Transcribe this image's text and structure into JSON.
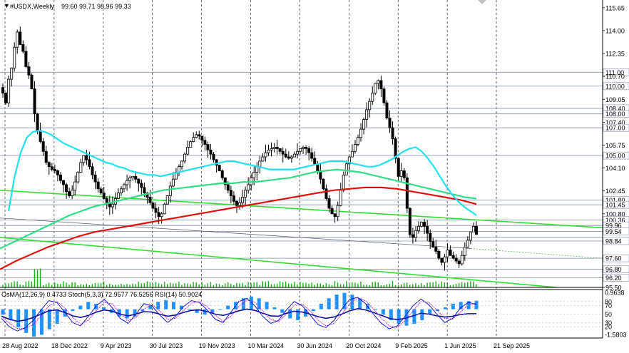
{
  "header": {
    "symbol": "#USDX,Weekly",
    "ohlc": "99.60 99.71 98.96 99.33",
    "indicator_caption": "OsMA(12,26,9) 0.4733  Stoch(5,3,3) 72.9577 76.5256  RSI(14) 50.9024"
  },
  "colors": {
    "candle": "#000000",
    "ma_cyan": "#22e0ee",
    "ma_green": "#33dd88",
    "ma_red": "#e01010",
    "trend_green": "#33dd33",
    "level_line": "#8090a8",
    "osma": "#1e90ff",
    "stoch_main": "#0000cc",
    "stoch_signal": "#cc00cc",
    "rsi": "#1010a0"
  },
  "chart_data": [
    {
      "type": "candlestick",
      "symbol": "#USDX",
      "timeframe": "Weekly",
      "ylim": [
        95.5,
        116
      ],
      "price_labels": [
        "115.65",
        "114.00",
        "112.35",
        "111.00",
        "110.70",
        "110.00",
        "109.05",
        "108.40",
        "108.00",
        "107.40",
        "107.00",
        "105.75",
        "105.00",
        "104.10",
        "102.45",
        "101.80",
        "101.45",
        "100.80",
        "100.36",
        "99.96",
        "99.54",
        "98.84",
        "97.60",
        "96.80",
        "96.20",
        "95.50"
      ],
      "horizontal_levels": [
        111.0,
        110.0,
        108.4,
        108.0,
        107.0,
        105.0,
        101.8,
        101.45,
        100.36,
        99.96,
        99.54,
        99.1,
        98.84,
        97.6,
        96.8,
        96.2
      ],
      "date_labels": [
        "28 Aug 2022",
        "18 Dec 2022",
        "9 Apr 2023",
        "30 Jul 2023",
        "19 Nov 2023",
        "10 Mar 2024",
        "30 Jun 2024",
        "20 Oct 2024",
        "9 Feb 2025",
        "1 Jun 2025",
        "21 Sep 2025"
      ],
      "closes": [
        109.5,
        108.8,
        110.5,
        111.3,
        112.8,
        113.9,
        113.0,
        112.5,
        111.4,
        110.8,
        109.8,
        108.0,
        106.8,
        106.0,
        105.3,
        104.5,
        104.2,
        104.0,
        103.9,
        103.6,
        103.2,
        102.9,
        102.4,
        102.1,
        102.5,
        103.1,
        103.8,
        104.5,
        105.0,
        104.7,
        104.2,
        103.6,
        103.1,
        102.6,
        102.3,
        101.9,
        101.6,
        101.3,
        101.5,
        101.9,
        102.3,
        102.6,
        102.9,
        103.2,
        103.4,
        103.5,
        103.3,
        103.0,
        102.7,
        102.3,
        102.0,
        101.6,
        101.2,
        100.9,
        100.6,
        100.8,
        101.5,
        102.1,
        102.8,
        103.3,
        103.8,
        104.2,
        104.6,
        105.1,
        105.6,
        106.0,
        106.3,
        106.5,
        106.4,
        106.1,
        105.8,
        105.4,
        105.1,
        104.7,
        104.3,
        103.9,
        103.4,
        102.9,
        102.5,
        102.1,
        101.7,
        101.4,
        101.6,
        102.0,
        102.5,
        102.9,
        103.4,
        103.8,
        104.2,
        104.6,
        104.9,
        105.2,
        105.4,
        105.5,
        105.6,
        105.5,
        105.3,
        105.1,
        104.9,
        104.8,
        104.9,
        105.1,
        105.3,
        105.5,
        105.6,
        105.5,
        105.2,
        104.8,
        104.4,
        103.9,
        103.3,
        102.6,
        101.9,
        101.2,
        100.8,
        100.6,
        101.4,
        102.5,
        103.6,
        104.4,
        104.9,
        105.3,
        105.8,
        106.3,
        106.9,
        107.6,
        108.3,
        108.9,
        109.5,
        110.2,
        110.4,
        109.8,
        108.8,
        107.7,
        107.0,
        106.2,
        104.8,
        103.5,
        103.9,
        103.4,
        101.2,
        99.3,
        99.1,
        99.6,
        99.9,
        100.2,
        99.9,
        99.4,
        98.8,
        98.4,
        98.1,
        97.6,
        97.3,
        97.7,
        98.2,
        97.8,
        97.6,
        97.4,
        97.2,
        97.8,
        98.4,
        98.9,
        99.5,
        99.9,
        99.33
      ],
      "ma_cyan": [
        101.0,
        103.5,
        105.2,
        106.3,
        106.7,
        106.8,
        106.7,
        106.5,
        106.2,
        105.9,
        105.7,
        105.5,
        105.3,
        105.1,
        104.9,
        104.7,
        104.5,
        104.4,
        104.2,
        104.1,
        103.9,
        103.8,
        103.7,
        103.6,
        103.6,
        103.5,
        103.6,
        103.7,
        103.8,
        103.9,
        104.0,
        104.1,
        104.2,
        104.3,
        104.4,
        104.5,
        104.6,
        104.6,
        104.5,
        104.4,
        104.3,
        104.2,
        104.1,
        104.0,
        104.0,
        104.0,
        104.0,
        104.0,
        104.1,
        104.2,
        104.3,
        104.4,
        104.5,
        104.6,
        104.6,
        104.6,
        104.5,
        104.4,
        104.3,
        104.2,
        104.2,
        104.3,
        104.5,
        104.7,
        105.0,
        105.3,
        105.5,
        105.6,
        105.3,
        104.8,
        104.2,
        103.5,
        102.8,
        102.2,
        101.7,
        101.3,
        101.0,
        100.7
      ],
      "ma_green": [
        98.3,
        98.7,
        99.1,
        99.5,
        99.9,
        100.3,
        100.7,
        101.0,
        101.3,
        101.5,
        101.7,
        101.9,
        102.1,
        102.3,
        102.5,
        102.6,
        102.7,
        102.8,
        102.9,
        103.0,
        103.0,
        103.1,
        103.1,
        103.2,
        103.3,
        103.4,
        103.6,
        103.8,
        103.9,
        104.0,
        103.9,
        103.8,
        103.6,
        103.4,
        103.2,
        103.0,
        102.8,
        102.6,
        102.4,
        102.2,
        102.0,
        101.9
      ],
      "ma_red": [
        96.8,
        97.4,
        97.9,
        98.4,
        98.8,
        99.2,
        99.5,
        99.7,
        99.9,
        100.1,
        100.3,
        100.5,
        100.7,
        100.9,
        101.1,
        101.3,
        101.5,
        101.7,
        101.9,
        102.1,
        102.3,
        102.5,
        102.6,
        102.7,
        102.7,
        102.6,
        102.4,
        102.2,
        102.0,
        101.8,
        101.5
      ],
      "trend_lines": [
        "green descending channel line through 102.45",
        "green descending channel line through 99.10",
        "thin grey descending line",
        "dotted grey extension line"
      ]
    },
    {
      "type": "oscillators",
      "panel_labels": [
        "0.9638",
        "70",
        "80",
        "50",
        "30",
        "20",
        "-1.5803"
      ],
      "osma_values": [
        -0.3,
        -0.6,
        -1.0,
        -1.3,
        -1.5,
        -1.4,
        -1.1,
        -0.8,
        -0.4,
        -0.1,
        0.2,
        0.4,
        0.3,
        0.1,
        -0.2,
        -0.4,
        -0.5,
        -0.4,
        -0.1,
        0.2,
        0.4,
        0.5,
        0.4,
        0.2,
        0.0,
        -0.2,
        -0.3,
        -0.2,
        0.0,
        0.2,
        0.4,
        0.6,
        0.7,
        0.6,
        0.4,
        0.1,
        -0.2,
        -0.5,
        -0.6,
        -0.4,
        -0.1,
        0.3,
        0.6,
        0.8,
        0.9,
        0.8,
        0.6,
        0.3,
        0.0,
        -0.3,
        -0.6,
        -0.8,
        -0.9,
        -0.8,
        -0.6,
        -0.3,
        -0.1,
        0.1,
        0.3,
        0.4,
        0.45,
        0.47
      ],
      "stoch_main": [
        40,
        20,
        10,
        18,
        35,
        60,
        82,
        78,
        55,
        30,
        22,
        45,
        70,
        85,
        65,
        40,
        28,
        50,
        75,
        70,
        48,
        30,
        45,
        68,
        82,
        78,
        60,
        38,
        30,
        55,
        80,
        88,
        70,
        45,
        28,
        35,
        60,
        80,
        70,
        48,
        25,
        18,
        35,
        62,
        85,
        90,
        75,
        50,
        28,
        15,
        22,
        45,
        70,
        86,
        72,
        50,
        30,
        40,
        65,
        78,
        73
      ],
      "stoch_signal": [
        45,
        28,
        16,
        15,
        25,
        45,
        70,
        80,
        65,
        42,
        26,
        36,
        58,
        78,
        74,
        52,
        35,
        42,
        62,
        73,
        58,
        38,
        40,
        58,
        76,
        80,
        68,
        48,
        33,
        45,
        68,
        84,
        78,
        58,
        38,
        32,
        50,
        72,
        74,
        58,
        36,
        22,
        28,
        50,
        75,
        88,
        82,
        62,
        40,
        22,
        18,
        35,
        58,
        80,
        78,
        60,
        40,
        38,
        55,
        72,
        76
      ],
      "rsi": [
        45,
        38,
        33,
        36,
        42,
        50,
        58,
        60,
        54,
        46,
        42,
        47,
        55,
        60,
        57,
        50,
        46,
        50,
        56,
        55,
        50,
        45,
        48,
        54,
        59,
        60,
        56,
        50,
        47,
        52,
        58,
        62,
        59,
        52,
        46,
        45,
        52,
        57,
        55,
        50,
        44,
        40,
        43,
        50,
        58,
        63,
        60,
        54,
        47,
        40,
        37,
        40,
        46,
        52,
        50,
        46,
        43,
        45,
        49,
        51,
        51
      ]
    }
  ]
}
